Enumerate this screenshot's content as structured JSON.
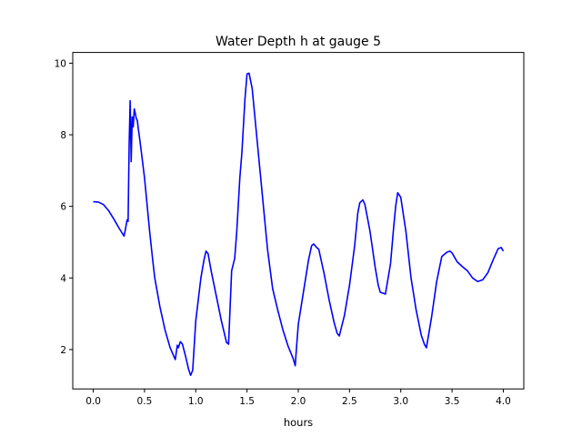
{
  "chart_data": {
    "type": "line",
    "title": "Water Depth h at gauge 5",
    "xlabel": "hours",
    "ylabel": "",
    "xlim": [
      -0.2,
      4.2
    ],
    "ylim": [
      0.9,
      10.3
    ],
    "xticks": [
      0.0,
      0.5,
      1.0,
      1.5,
      2.0,
      2.5,
      3.0,
      3.5,
      4.0
    ],
    "xtick_labels": [
      "0.0",
      "0.5",
      "1.0",
      "1.5",
      "2.0",
      "2.5",
      "3.0",
      "3.5",
      "4.0"
    ],
    "yticks": [
      2,
      4,
      6,
      8,
      10
    ],
    "ytick_labels": [
      "2",
      "4",
      "6",
      "8",
      "10"
    ],
    "grid": false,
    "series": [
      {
        "color": "#0000ff",
        "x": [
          0.0,
          0.05,
          0.1,
          0.15,
          0.2,
          0.25,
          0.3,
          0.31,
          0.33,
          0.34,
          0.35,
          0.36,
          0.37,
          0.38,
          0.39,
          0.4,
          0.41,
          0.42,
          0.43,
          0.44,
          0.45,
          0.47,
          0.5,
          0.52,
          0.55,
          0.58,
          0.6,
          0.65,
          0.7,
          0.75,
          0.8,
          0.82,
          0.83,
          0.85,
          0.87,
          0.9,
          0.93,
          0.95,
          0.97,
          1.0,
          1.05,
          1.08,
          1.1,
          1.12,
          1.15,
          1.2,
          1.25,
          1.3,
          1.32,
          1.35,
          1.38,
          1.4,
          1.43,
          1.45,
          1.48,
          1.5,
          1.52,
          1.55,
          1.6,
          1.65,
          1.7,
          1.75,
          1.8,
          1.85,
          1.9,
          1.95,
          1.97,
          1.98,
          2.0,
          2.05,
          2.1,
          2.13,
          2.15,
          2.18,
          2.2,
          2.25,
          2.3,
          2.35,
          2.38,
          2.4,
          2.45,
          2.5,
          2.55,
          2.58,
          2.6,
          2.63,
          2.65,
          2.7,
          2.75,
          2.78,
          2.8,
          2.85,
          2.9,
          2.93,
          2.95,
          2.97,
          3.0,
          3.05,
          3.1,
          3.15,
          3.2,
          3.23,
          3.25,
          3.3,
          3.35,
          3.4,
          3.45,
          3.48,
          3.5,
          3.55,
          3.6,
          3.65,
          3.7,
          3.75,
          3.8,
          3.85,
          3.9,
          3.95,
          3.98,
          4.0
        ],
        "y": [
          6.13,
          6.12,
          6.05,
          5.88,
          5.65,
          5.4,
          5.17,
          5.3,
          5.62,
          5.58,
          7.7,
          8.95,
          7.25,
          8.5,
          8.22,
          8.72,
          8.6,
          8.45,
          8.4,
          8.15,
          7.95,
          7.5,
          6.8,
          6.2,
          5.3,
          4.5,
          4.0,
          3.2,
          2.55,
          2.05,
          1.72,
          2.12,
          2.05,
          2.22,
          2.15,
          1.82,
          1.45,
          1.28,
          1.42,
          2.8,
          4.0,
          4.5,
          4.75,
          4.68,
          4.2,
          3.5,
          2.8,
          2.2,
          2.15,
          4.2,
          4.55,
          5.3,
          6.8,
          7.5,
          9.0,
          9.7,
          9.72,
          9.3,
          7.8,
          6.3,
          4.8,
          3.7,
          3.1,
          2.55,
          2.1,
          1.75,
          1.55,
          1.95,
          2.7,
          3.6,
          4.5,
          4.9,
          4.95,
          4.85,
          4.8,
          4.15,
          3.4,
          2.75,
          2.45,
          2.38,
          2.95,
          3.8,
          4.9,
          5.8,
          6.1,
          6.18,
          6.05,
          5.3,
          4.3,
          3.8,
          3.6,
          3.55,
          4.4,
          5.4,
          6.0,
          6.38,
          6.25,
          5.3,
          4.0,
          3.1,
          2.4,
          2.15,
          2.05,
          2.9,
          3.9,
          4.6,
          4.72,
          4.75,
          4.7,
          4.45,
          4.32,
          4.2,
          4.0,
          3.9,
          3.95,
          4.15,
          4.5,
          4.82,
          4.85,
          4.75
        ]
      }
    ]
  }
}
